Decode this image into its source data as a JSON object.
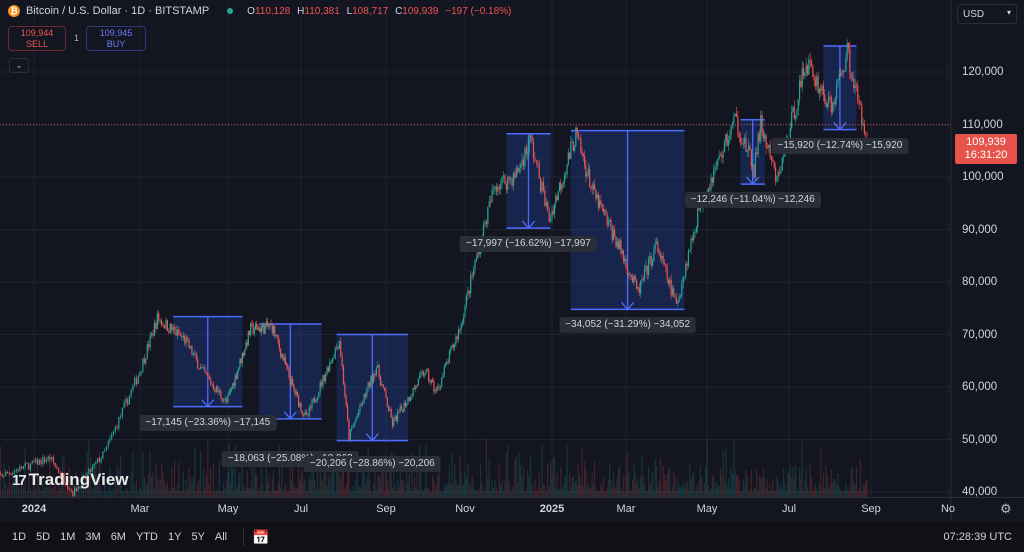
{
  "header": {
    "title": "Bitcoin / U.S. Dollar · 1D · BITSTAMP",
    "open_label": "O",
    "open": "110,128",
    "high_label": "H",
    "high": "110,381",
    "low_label": "L",
    "low": "108,717",
    "close_label": "C",
    "close": "109,939",
    "change": "−197 (−0.18%)"
  },
  "trade": {
    "sell_price": "109,944",
    "sell_label": "SELL",
    "qty": "1",
    "buy_price": "109,945",
    "buy_label": "BUY"
  },
  "currency": "USD",
  "last_price": {
    "price": "109,939",
    "countdown": "16:31:20"
  },
  "logo": "TradingView",
  "ranges": [
    "1D",
    "5D",
    "1M",
    "3M",
    "6M",
    "YTD",
    "1Y",
    "5Y",
    "All"
  ],
  "clock": "07:28:39 UTC",
  "colors": {
    "up": "#26a69a",
    "down": "#ef5350",
    "measure": "#2962ff",
    "last_price_bg": "#e5534b"
  },
  "chart_data": {
    "type": "candlestick",
    "symbol": "BTCUSD",
    "ylim": [
      40000,
      125000
    ],
    "y_ticks": [
      {
        "v": 40000,
        "label": "40,000"
      },
      {
        "v": 50000,
        "label": "50,000"
      },
      {
        "v": 60000,
        "label": "60,000"
      },
      {
        "v": 70000,
        "label": "70,000"
      },
      {
        "v": 80000,
        "label": "80,000"
      },
      {
        "v": 90000,
        "label": "90,000"
      },
      {
        "v": 100000,
        "label": "100,000"
      },
      {
        "v": 110000,
        "label": "110,000"
      },
      {
        "v": 120000,
        "label": "120,000"
      }
    ],
    "x_ticks": [
      {
        "d": "2024-01-01",
        "label": "2024",
        "year": true
      },
      {
        "d": "2024-03-01",
        "label": "Mar"
      },
      {
        "d": "2024-05-01",
        "label": "May"
      },
      {
        "d": "2024-07-01",
        "label": "Jul"
      },
      {
        "d": "2024-09-01",
        "label": "Sep"
      },
      {
        "d": "2024-11-01",
        "label": "Nov"
      },
      {
        "d": "2025-01-01",
        "label": "2025",
        "year": true
      },
      {
        "d": "2025-03-01",
        "label": "Mar"
      },
      {
        "d": "2025-05-01",
        "label": "May"
      },
      {
        "d": "2025-07-01",
        "label": "Jul"
      },
      {
        "d": "2025-09-01",
        "label": "Sep"
      },
      {
        "d": "2025-11-01",
        "label": "No"
      }
    ],
    "price_path": [
      [
        "2023-12-08",
        42500
      ],
      [
        "2024-01-10",
        46500
      ],
      [
        "2024-01-23",
        39800
      ],
      [
        "2024-02-10",
        47500
      ],
      [
        "2024-02-28",
        61500
      ],
      [
        "2024-03-13",
        73100
      ],
      [
        "2024-04-01",
        69000
      ],
      [
        "2024-04-13",
        63000
      ],
      [
        "2024-04-30",
        57000
      ],
      [
        "2024-05-20",
        71000
      ],
      [
        "2024-06-07",
        71500
      ],
      [
        "2024-06-24",
        60000
      ],
      [
        "2024-07-05",
        54000
      ],
      [
        "2024-07-29",
        69000
      ],
      [
        "2024-08-05",
        50500
      ],
      [
        "2024-08-25",
        64000
      ],
      [
        "2024-09-06",
        53000
      ],
      [
        "2024-10-01",
        63000
      ],
      [
        "2024-10-10",
        59000
      ],
      [
        "2024-10-29",
        72000
      ],
      [
        "2024-11-12",
        88000
      ],
      [
        "2024-11-22",
        98500
      ],
      [
        "2024-12-06",
        100000
      ],
      [
        "2024-12-17",
        107000
      ],
      [
        "2024-12-30",
        92000
      ],
      [
        "2025-01-20",
        108000
      ],
      [
        "2025-02-03",
        97000
      ],
      [
        "2025-02-25",
        86000
      ],
      [
        "2025-03-10",
        78000
      ],
      [
        "2025-03-24",
        87000
      ],
      [
        "2025-04-08",
        75500
      ],
      [
        "2025-04-25",
        94000
      ],
      [
        "2025-05-22",
        111000
      ],
      [
        "2025-06-05",
        101500
      ],
      [
        "2025-06-10",
        110000
      ],
      [
        "2025-06-22",
        99000
      ],
      [
        "2025-07-14",
        122000
      ],
      [
        "2025-08-02",
        113000
      ],
      [
        "2025-08-14",
        124000
      ],
      [
        "2025-08-26",
        110000
      ],
      [
        "2025-08-29",
        109939
      ]
    ],
    "drawdowns": [
      {
        "start": "2024-03-24",
        "end": "2024-05-13",
        "high": 73400,
        "low": 56255,
        "label": "−17,145 (−23.36%) −17,145"
      },
      {
        "start": "2024-05-27",
        "end": "2024-07-16",
        "high": 72000,
        "low": 53937,
        "label": "−18,063 (−25.08%) −18,063"
      },
      {
        "start": "2024-07-27",
        "end": "2024-09-18",
        "high": 70000,
        "low": 49794,
        "label": "−20,206 (−28.86%) −20,206"
      },
      {
        "start": "2024-11-30",
        "end": "2024-12-31",
        "high": 108250,
        "low": 90253,
        "label": "−17,997 (−16.62%) −17,997"
      },
      {
        "start": "2025-01-16",
        "end": "2025-04-14",
        "high": 108830,
        "low": 74778,
        "label": "−34,052 (−31.29%) −34,052"
      },
      {
        "start": "2025-05-26",
        "end": "2025-06-13",
        "high": 110900,
        "low": 98654,
        "label": "−12,246 (−11.04%) −12,246"
      },
      {
        "start": "2025-07-27",
        "end": "2025-08-21",
        "high": 124950,
        "low": 109030,
        "label": "−15,920 (−12.74%) −15,920"
      }
    ]
  }
}
